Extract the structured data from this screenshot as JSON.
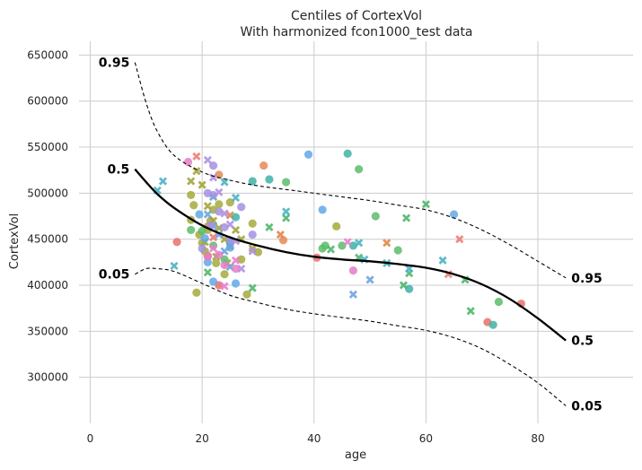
{
  "chart_data": {
    "type": "scatter",
    "title": "Centiles of CortexVol",
    "subtitle": "With harmonized fcon1000_test data",
    "xlabel": "age",
    "ylabel": "CortexVol",
    "xlim": [
      -2,
      97
    ],
    "ylim": [
      250000,
      665000
    ],
    "xticks": [
      0,
      20,
      40,
      60,
      80
    ],
    "yticks": [
      300000,
      350000,
      400000,
      450000,
      500000,
      550000,
      600000,
      650000
    ],
    "grid": true,
    "centile_curves": [
      {
        "centile": "0.95",
        "style": "dashed",
        "points": [
          [
            8,
            642000
          ],
          [
            10,
            598000
          ],
          [
            12,
            567000
          ],
          [
            15,
            541000
          ],
          [
            20,
            523000
          ],
          [
            25,
            514000
          ],
          [
            30,
            508000
          ],
          [
            35,
            504000
          ],
          [
            40,
            500000
          ],
          [
            45,
            496000
          ],
          [
            50,
            492000
          ],
          [
            55,
            487000
          ],
          [
            60,
            482000
          ],
          [
            65,
            473000
          ],
          [
            70,
            460000
          ],
          [
            75,
            444000
          ],
          [
            80,
            426000
          ],
          [
            85,
            408000
          ]
        ],
        "left_label": "0.95",
        "right_label": "0.95"
      },
      {
        "centile": "0.5",
        "style": "solid",
        "points": [
          [
            8,
            526000
          ],
          [
            10,
            512000
          ],
          [
            12,
            499000
          ],
          [
            15,
            484000
          ],
          [
            20,
            465000
          ],
          [
            25,
            452000
          ],
          [
            30,
            443000
          ],
          [
            35,
            436000
          ],
          [
            40,
            431000
          ],
          [
            45,
            428000
          ],
          [
            50,
            426000
          ],
          [
            55,
            423000
          ],
          [
            60,
            419000
          ],
          [
            65,
            412000
          ],
          [
            70,
            401000
          ],
          [
            75,
            385000
          ],
          [
            80,
            364000
          ],
          [
            85,
            340000
          ]
        ],
        "left_label": "0.5",
        "right_label": "0.5"
      },
      {
        "centile": "0.05",
        "style": "dashed",
        "points": [
          [
            8,
            412000
          ],
          [
            10,
            418000
          ],
          [
            12,
            418000
          ],
          [
            15,
            415000
          ],
          [
            20,
            402000
          ],
          [
            25,
            389000
          ],
          [
            30,
            381000
          ],
          [
            35,
            374000
          ],
          [
            40,
            369000
          ],
          [
            45,
            365000
          ],
          [
            50,
            361000
          ],
          [
            55,
            356000
          ],
          [
            60,
            351000
          ],
          [
            65,
            343000
          ],
          [
            70,
            331000
          ],
          [
            75,
            314000
          ],
          [
            80,
            294000
          ],
          [
            85,
            269000
          ]
        ],
        "left_label": "0.05",
        "right_label": "0.05"
      }
    ],
    "series": [
      {
        "color": "#e8716b",
        "marker": "circle",
        "points": [
          [
            15.5,
            447000
          ],
          [
            21,
            432000
          ],
          [
            23,
            400000
          ],
          [
            40.5,
            430000
          ],
          [
            71,
            360000
          ],
          [
            77,
            380000
          ]
        ]
      },
      {
        "color": "#f07d74",
        "marker": "x",
        "points": [
          [
            19,
            540000
          ],
          [
            22,
            452000
          ],
          [
            64,
            412000
          ],
          [
            66,
            450000
          ]
        ]
      },
      {
        "color": "#e58a55",
        "marker": "circle",
        "points": [
          [
            23,
            520000
          ],
          [
            31,
            530000
          ],
          [
            34.5,
            449000
          ],
          [
            21,
            464000
          ]
        ]
      },
      {
        "color": "#e0874f",
        "marker": "x",
        "points": [
          [
            25,
            476000
          ],
          [
            34,
            455000
          ],
          [
            53,
            446000
          ]
        ]
      },
      {
        "color": "#a4aa3b",
        "marker": "circle",
        "points": [
          [
            18,
            498000
          ],
          [
            18.5,
            487000
          ],
          [
            19,
            392000
          ],
          [
            20,
            446000
          ],
          [
            20.5,
            437000
          ],
          [
            21,
            460000
          ],
          [
            22,
            482000
          ],
          [
            22.5,
            424000
          ],
          [
            25,
            490000
          ],
          [
            27,
            428000
          ],
          [
            28,
            390000
          ],
          [
            29,
            467000
          ],
          [
            30,
            436000
          ],
          [
            44,
            464000
          ],
          [
            18,
            471000
          ],
          [
            19.5,
            455000
          ],
          [
            21.5,
            470000
          ],
          [
            23,
            488000
          ],
          [
            24,
            412000
          ]
        ]
      },
      {
        "color": "#a3a53c",
        "marker": "x",
        "points": [
          [
            19,
            524000
          ],
          [
            20,
            509000
          ],
          [
            21,
            486000
          ],
          [
            22,
            470000
          ],
          [
            23,
            462000
          ],
          [
            24,
            450000
          ],
          [
            25,
            442000
          ],
          [
            18,
            513000
          ],
          [
            20.5,
            447000
          ],
          [
            22.5,
            431000
          ],
          [
            24.5,
            424000
          ],
          [
            26,
            460000
          ],
          [
            27,
            450000
          ],
          [
            29,
            440000
          ]
        ]
      },
      {
        "color": "#5cbc6a",
        "marker": "circle",
        "points": [
          [
            20,
            459000
          ],
          [
            22,
            443000
          ],
          [
            24,
            428000
          ],
          [
            35,
            512000
          ],
          [
            41.5,
            440000
          ],
          [
            42,
            443000
          ],
          [
            45,
            443000
          ],
          [
            48,
            526000
          ],
          [
            51,
            475000
          ],
          [
            55,
            438000
          ],
          [
            73,
            382000
          ],
          [
            18,
            460000
          ]
        ]
      },
      {
        "color": "#4fb86d",
        "marker": "x",
        "points": [
          [
            21,
            414000
          ],
          [
            29,
            397000
          ],
          [
            32,
            463000
          ],
          [
            35,
            473000
          ],
          [
            43,
            439000
          ],
          [
            48,
            430000
          ],
          [
            56,
            400000
          ],
          [
            57,
            413000
          ],
          [
            60,
            488000
          ],
          [
            67,
            406000
          ],
          [
            68,
            372000
          ],
          [
            56.5,
            473000
          ]
        ]
      },
      {
        "color": "#3fb2a8",
        "marker": "circle",
        "points": [
          [
            29,
            513000
          ],
          [
            32,
            515000
          ],
          [
            46,
            543000
          ],
          [
            47,
            443000
          ],
          [
            57,
            396000
          ],
          [
            72,
            357000
          ],
          [
            25,
            446000
          ],
          [
            26,
            474000
          ]
        ]
      },
      {
        "color": "#4eb3c3",
        "marker": "x",
        "points": [
          [
            12,
            503000
          ],
          [
            13,
            513000
          ],
          [
            15,
            421000
          ],
          [
            24,
            512000
          ],
          [
            26,
            495000
          ],
          [
            35,
            480000
          ],
          [
            48,
            446000
          ],
          [
            49,
            428000
          ],
          [
            53,
            424000
          ],
          [
            57,
            418000
          ],
          [
            63,
            427000
          ],
          [
            22,
            496000
          ]
        ]
      },
      {
        "color": "#60a8e7",
        "marker": "circle",
        "points": [
          [
            19.5,
            477000
          ],
          [
            20.5,
            451000
          ],
          [
            21,
            425000
          ],
          [
            22,
            404000
          ],
          [
            25,
            441000
          ],
          [
            39,
            542000
          ],
          [
            41.5,
            482000
          ],
          [
            65,
            477000
          ],
          [
            26,
            402000
          ]
        ]
      },
      {
        "color": "#6fa3e0",
        "marker": "x",
        "points": [
          [
            21,
            477000
          ],
          [
            23,
            455000
          ],
          [
            24,
            437000
          ],
          [
            25,
            420000
          ],
          [
            47,
            390000
          ],
          [
            50,
            406000
          ],
          [
            22,
            464000
          ]
        ]
      },
      {
        "color": "#a592e0",
        "marker": "circle",
        "points": [
          [
            21,
            500000
          ],
          [
            22,
            530000
          ],
          [
            22,
            498000
          ],
          [
            23,
            480000
          ],
          [
            24,
            463000
          ],
          [
            25,
            449000
          ],
          [
            27,
            485000
          ],
          [
            29,
            455000
          ],
          [
            20,
            440000
          ],
          [
            21.5,
            465000
          ]
        ]
      },
      {
        "color": "#b090e5",
        "marker": "x",
        "points": [
          [
            21,
            536000
          ],
          [
            22,
            517000
          ],
          [
            23,
            501000
          ],
          [
            24,
            478000
          ],
          [
            25,
            466000
          ],
          [
            26,
            448000
          ],
          [
            27,
            418000
          ],
          [
            29,
            437000
          ]
        ]
      },
      {
        "color": "#e47ec8",
        "marker": "circle",
        "points": [
          [
            17.5,
            534000
          ],
          [
            21,
            431000
          ],
          [
            23,
            433000
          ],
          [
            24,
            422000
          ],
          [
            26,
            418000
          ],
          [
            47,
            416000
          ]
        ]
      },
      {
        "color": "#ea7fd0",
        "marker": "x",
        "points": [
          [
            22,
            440000
          ],
          [
            24,
            399000
          ],
          [
            26,
            427000
          ],
          [
            46,
            447000
          ]
        ]
      }
    ]
  }
}
